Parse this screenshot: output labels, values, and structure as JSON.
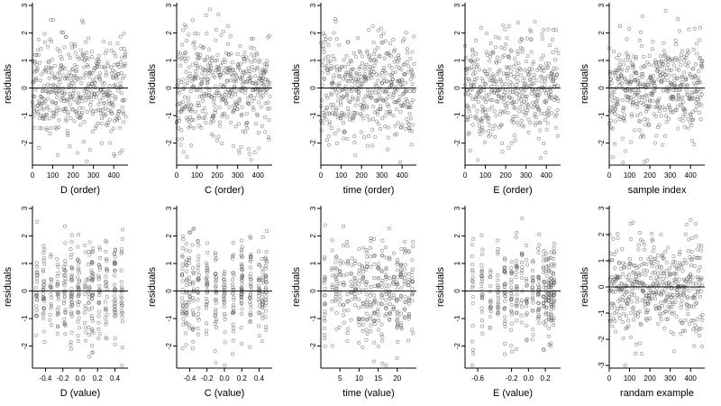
{
  "chart_data": [
    {
      "id": "D-order",
      "type": "scatter",
      "xlabel": "D (order)",
      "ylabel": "residuals",
      "kind": "order",
      "n": 460,
      "xlim": [
        0,
        470
      ],
      "ylim": [
        -2.8,
        3.1
      ],
      "xticks": [
        0,
        100,
        200,
        300,
        400
      ],
      "yticks": [
        -2,
        -1,
        0,
        1,
        2,
        3
      ],
      "hline": 0,
      "seed": 11
    },
    {
      "id": "C-order",
      "type": "scatter",
      "xlabel": "C (order)",
      "ylabel": "residuals",
      "kind": "order",
      "n": 460,
      "xlim": [
        0,
        470
      ],
      "ylim": [
        -2.8,
        3.1
      ],
      "xticks": [
        0,
        100,
        200,
        300,
        400
      ],
      "yticks": [
        -2,
        -1,
        0,
        1,
        2,
        3
      ],
      "hline": 0,
      "seed": 23
    },
    {
      "id": "time-order",
      "type": "scatter",
      "xlabel": "time (order)",
      "ylabel": "residuals",
      "kind": "order",
      "n": 460,
      "xlim": [
        0,
        470
      ],
      "ylim": [
        -2.8,
        3.1
      ],
      "xticks": [
        0,
        100,
        200,
        300,
        400
      ],
      "yticks": [
        -2,
        -1,
        0,
        1,
        2,
        3
      ],
      "hline": 0,
      "seed": 37
    },
    {
      "id": "E-order",
      "type": "scatter",
      "xlabel": "E (order)",
      "ylabel": "residuals",
      "kind": "order",
      "n": 460,
      "xlim": [
        0,
        470
      ],
      "ylim": [
        -2.8,
        3.1
      ],
      "xticks": [
        0,
        100,
        200,
        300,
        400
      ],
      "yticks": [
        -2,
        -1,
        0,
        1,
        2,
        3
      ],
      "hline": 0,
      "seed": 41
    },
    {
      "id": "sample-index",
      "type": "scatter",
      "xlabel": "sample index",
      "ylabel": "residuals",
      "kind": "order",
      "n": 460,
      "xlim": [
        0,
        470
      ],
      "ylim": [
        -2.8,
        3.1
      ],
      "xticks": [
        0,
        100,
        200,
        300,
        400
      ],
      "yticks": [
        -2,
        -1,
        0,
        1,
        2,
        3
      ],
      "hline": 0,
      "seed": 53
    },
    {
      "id": "D-value",
      "type": "scatter",
      "xlabel": "D (value)",
      "ylabel": "residuals",
      "kind": "value",
      "n": 360,
      "levels": [
        -0.5,
        -0.42,
        -0.34,
        -0.26,
        -0.18,
        -0.1,
        -0.02,
        0.06,
        0.1,
        0.14,
        0.22,
        0.3,
        0.4,
        0.48
      ],
      "jitter": 0.01,
      "xlim": [
        -0.55,
        0.55
      ],
      "ylim": [
        -2.8,
        3.1
      ],
      "xticks": [
        -0.4,
        -0.2,
        0,
        0.2,
        0.4
      ],
      "xticklabels": [
        "-0.4",
        "-0.2",
        "0.0",
        "0.2",
        "0.4"
      ],
      "yticks": [
        -2,
        -1,
        0,
        1,
        2,
        3
      ],
      "hline": 0,
      "seed": 61
    },
    {
      "id": "C-value",
      "type": "scatter",
      "xlabel": "C (value)",
      "ylabel": "residuals",
      "kind": "value",
      "n": 360,
      "levels": [
        -0.48,
        -0.44,
        -0.4,
        -0.36,
        -0.3,
        -0.2,
        -0.1,
        0.0,
        0.1,
        0.2,
        0.3,
        0.4,
        0.44,
        0.48
      ],
      "jitter": 0.008,
      "xlim": [
        -0.55,
        0.55
      ],
      "ylim": [
        -2.8,
        3.1
      ],
      "xticks": [
        -0.4,
        -0.2,
        0,
        0.2,
        0.4
      ],
      "xticklabels": [
        "-0.4",
        "-0.2",
        "0.0",
        "0.2",
        "0.4"
      ],
      "yticks": [
        -2,
        -1,
        0,
        1,
        2,
        3
      ],
      "hline": 0,
      "seed": 71
    },
    {
      "id": "time-value",
      "type": "scatter",
      "xlabel": "time (value)",
      "ylabel": "residuals",
      "kind": "value",
      "n": 380,
      "levels": [
        1,
        3,
        4,
        5,
        6,
        7,
        8,
        9,
        10,
        11,
        12,
        13,
        14,
        15,
        16,
        17,
        18,
        19,
        20,
        21,
        22,
        23,
        24
      ],
      "jitter": 0.15,
      "xlim": [
        0,
        25
      ],
      "ylim": [
        -2.8,
        3.1
      ],
      "xticks": [
        5,
        10,
        15,
        20
      ],
      "yticks": [
        -2,
        -1,
        0,
        1,
        2,
        3
      ],
      "hline": 0,
      "seed": 83
    },
    {
      "id": "E-value",
      "type": "scatter",
      "xlabel": "E (value)",
      "ylabel": "residuals",
      "kind": "value",
      "n": 360,
      "levels": [
        -0.66,
        -0.55,
        -0.45,
        -0.36,
        -0.28,
        -0.2,
        -0.14,
        -0.08,
        -0.02,
        0.05,
        0.12,
        0.18,
        0.21,
        0.24,
        0.27,
        0.3
      ],
      "jitter": 0.007,
      "xlim": [
        -0.75,
        0.38
      ],
      "ylim": [
        -2.8,
        3.1
      ],
      "xticks": [
        -0.6,
        -0.2,
        0,
        0.2
      ],
      "xticklabels": [
        "-0.6",
        "-0.2",
        "0.0",
        "0.2"
      ],
      "yticks": [
        -2,
        -1,
        0,
        1,
        2,
        3
      ],
      "hline": 0,
      "seed": 97
    },
    {
      "id": "random-example",
      "type": "scatter",
      "xlabel": "randam example",
      "ylabel": "residuals",
      "kind": "order",
      "n": 460,
      "xlim": [
        0,
        470
      ],
      "ylim": [
        -3.1,
        3.1
      ],
      "xticks": [
        0,
        100,
        200,
        300,
        400
      ],
      "yticks": [
        -3,
        -2,
        -1,
        0,
        1,
        2,
        3
      ],
      "hline": 0,
      "seed": 109
    }
  ]
}
